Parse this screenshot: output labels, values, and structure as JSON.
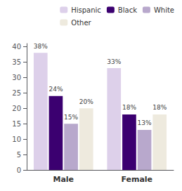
{
  "chart_data": {
    "type": "bar",
    "categories": [
      "Male",
      "Female"
    ],
    "series": [
      {
        "name": "Hispanic",
        "color": "#ddd0ea",
        "values": [
          38,
          33
        ],
        "value_labels": [
          "38%",
          "33%"
        ]
      },
      {
        "name": "Black",
        "color": "#3b0070",
        "values": [
          24,
          18
        ],
        "value_labels": [
          "24%",
          "18%"
        ]
      },
      {
        "name": "White",
        "color": "#b8a8cc",
        "values": [
          15,
          13
        ],
        "value_labels": [
          "15%",
          "13%"
        ]
      },
      {
        "name": "Other",
        "color": "#eeeade",
        "values": [
          20,
          18
        ],
        "value_labels": [
          "20%",
          "18%"
        ]
      }
    ],
    "ylim": [
      0,
      41
    ],
    "yticks": [
      0,
      5,
      10,
      15,
      20,
      25,
      30,
      35,
      40
    ],
    "grid": false,
    "data_labels": true,
    "legend": "upper right"
  }
}
